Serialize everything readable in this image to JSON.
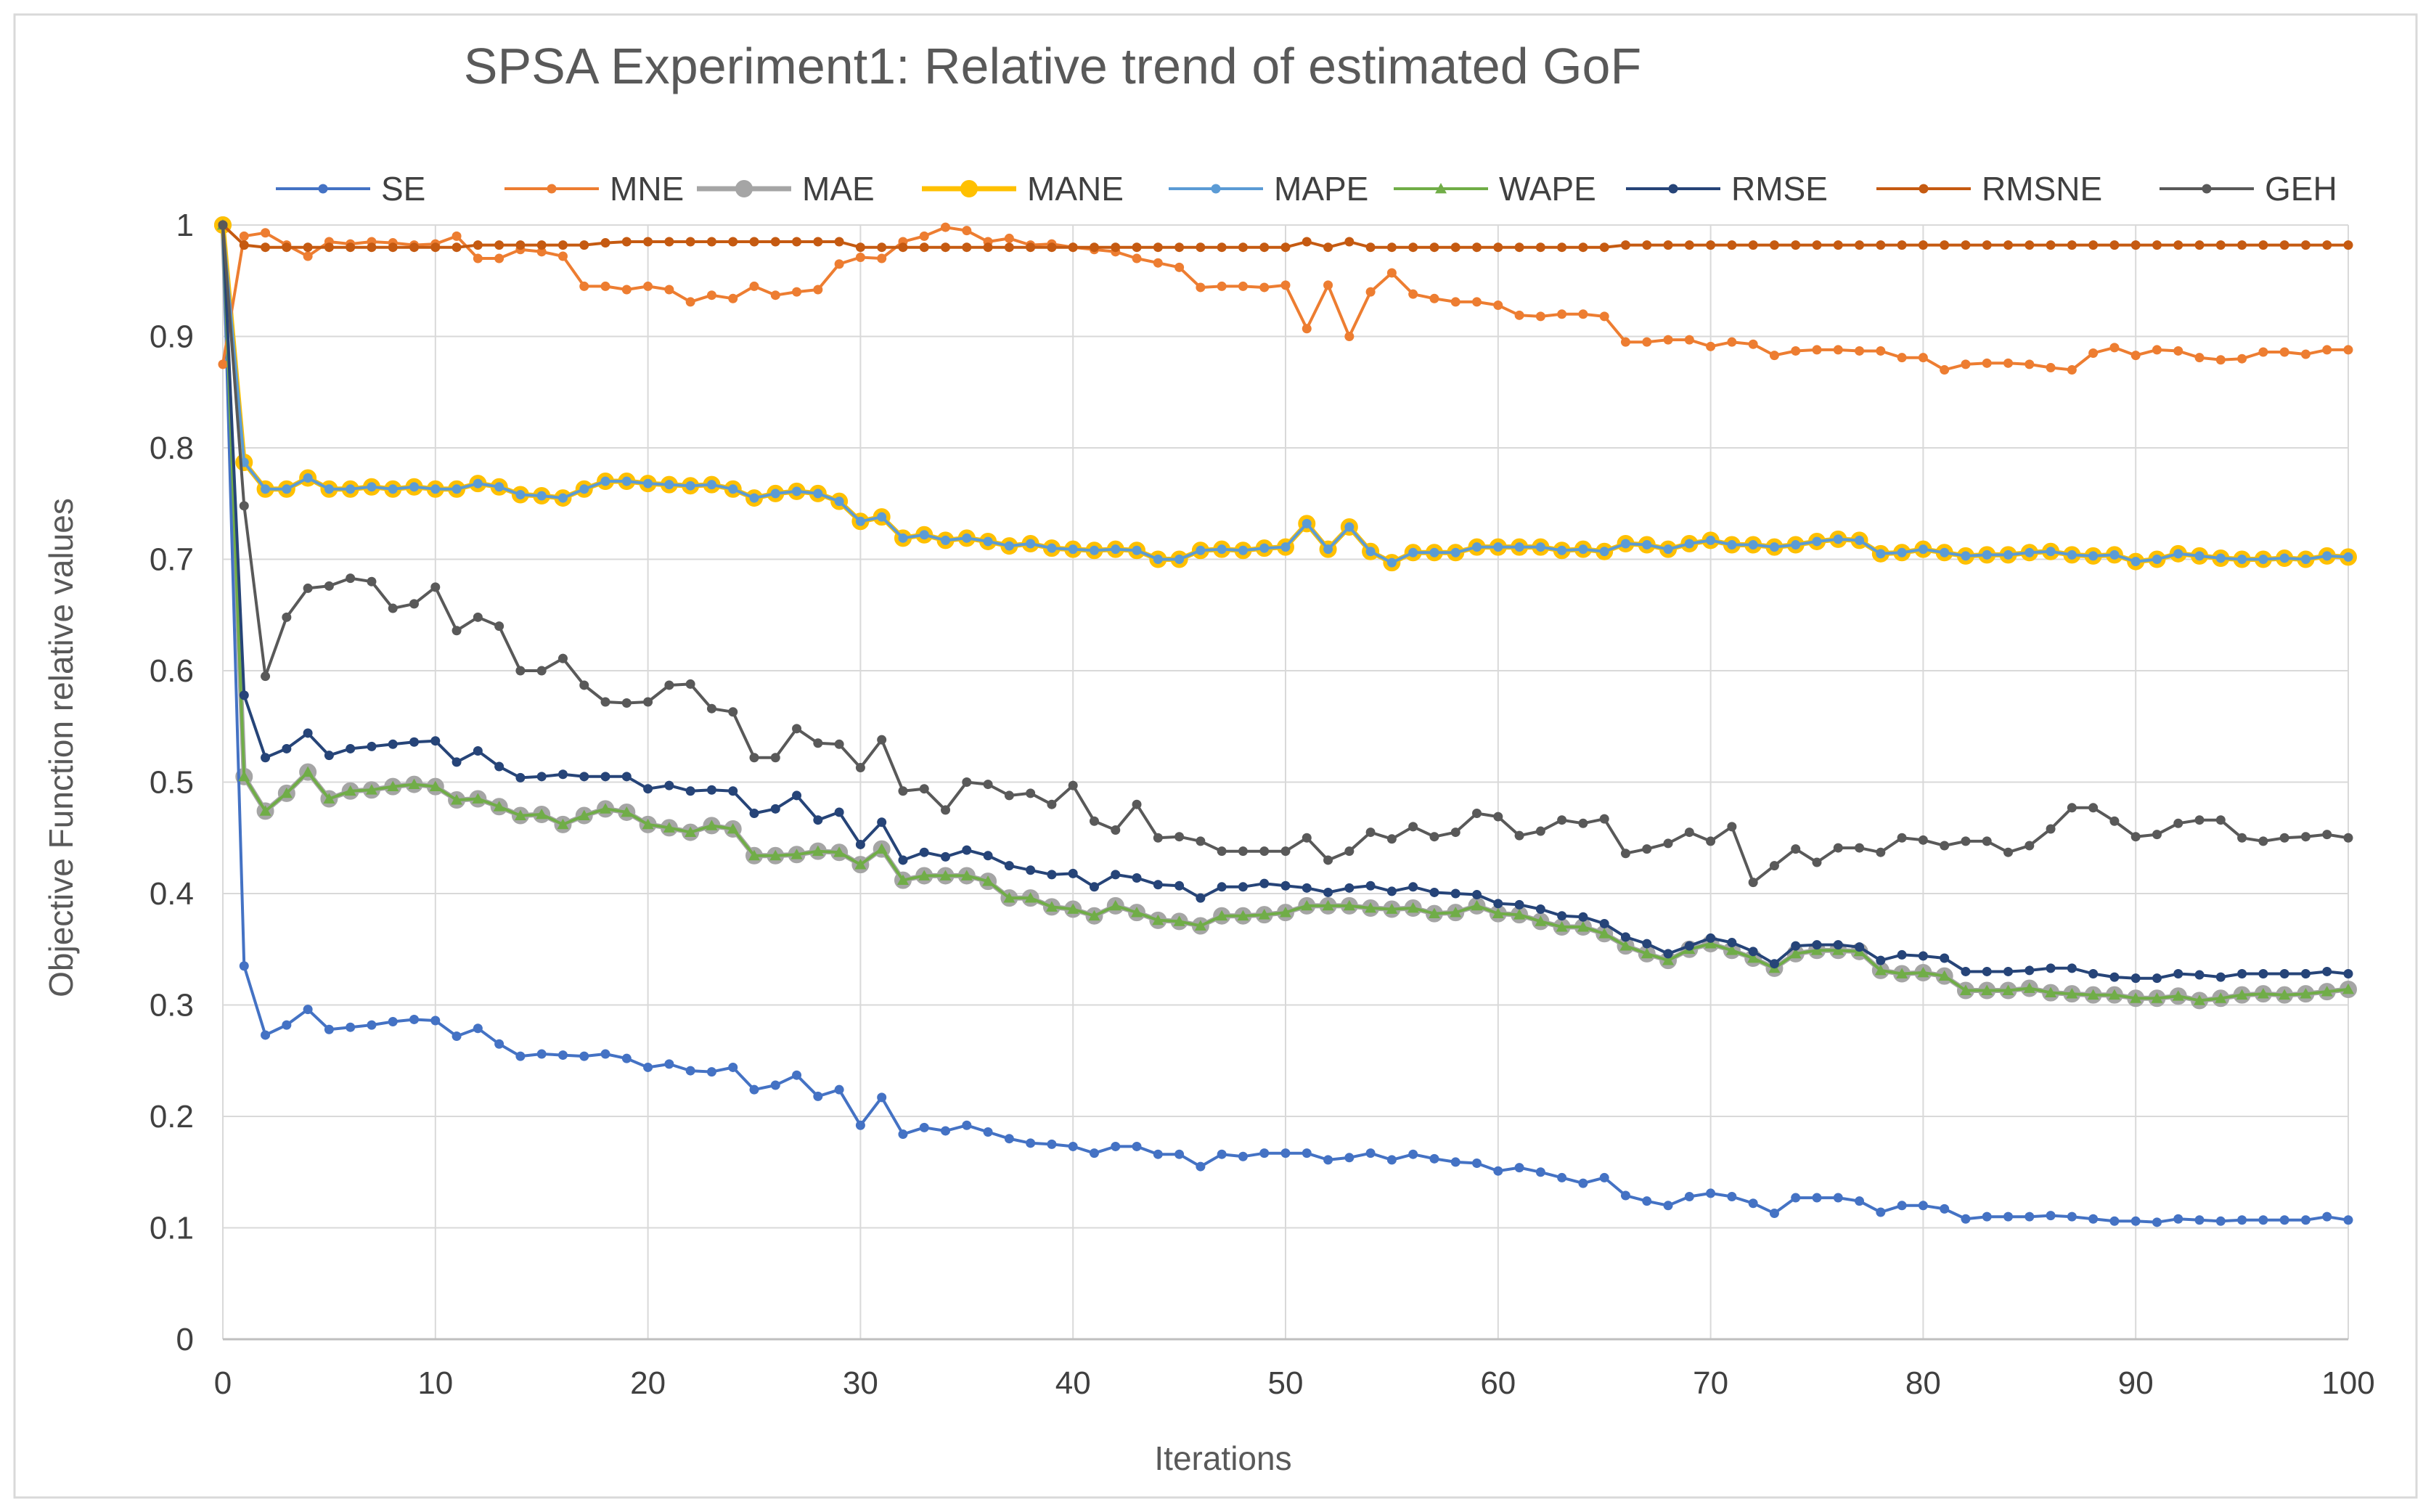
{
  "chart_data": {
    "type": "line",
    "title": "SPSA Experiment1: Relative trend of estimated GoF",
    "xlabel": "Iterations",
    "ylabel": "Objective Function relative values",
    "xlim": [
      0,
      100
    ],
    "ylim": [
      0,
      1
    ],
    "grid": true,
    "legend_position": "top",
    "x_ticks": [
      0,
      10,
      20,
      30,
      40,
      50,
      60,
      70,
      80,
      90,
      100
    ],
    "y_ticks": [
      0,
      0.1,
      0.2,
      0.3,
      0.4,
      0.5,
      0.6,
      0.7,
      0.8,
      0.9,
      1
    ],
    "x_tick_labels": [
      "0",
      "10",
      "20",
      "30",
      "40",
      "50",
      "60",
      "70",
      "80",
      "90",
      "100"
    ],
    "y_tick_labels": [
      "0",
      "0.1",
      "0.2",
      "0.3",
      "0.4",
      "0.5",
      "0.6",
      "0.7",
      "0.8",
      "0.9",
      "1"
    ],
    "series": [
      {
        "name": "SE",
        "color": "#4472C4",
        "marker": "dot",
        "values": [
          1,
          0.335,
          0.273,
          0.282,
          0.296,
          0.278,
          0.28,
          0.282,
          0.285,
          0.287,
          0.286,
          0.272,
          0.279,
          0.265,
          0.254,
          0.256,
          0.255,
          0.254,
          0.256,
          0.252,
          0.244,
          0.247,
          0.241,
          0.24,
          0.244,
          0.224,
          0.228,
          0.237,
          0.218,
          0.224,
          0.192,
          0.217,
          0.184,
          0.19,
          0.187,
          0.192,
          0.186,
          0.18,
          0.176,
          0.175,
          0.173,
          0.167,
          0.173,
          0.173,
          0.166,
          0.166,
          0.155,
          0.166,
          0.164,
          0.167,
          0.167,
          0.167,
          0.161,
          0.163,
          0.167,
          0.161,
          0.166,
          0.162,
          0.159,
          0.158,
          0.151,
          0.154,
          0.15,
          0.145,
          0.14,
          0.145,
          0.129,
          0.124,
          0.12,
          0.128,
          0.131,
          0.128,
          0.122,
          0.113,
          0.127,
          0.127,
          0.127,
          0.124,
          0.114,
          0.12,
          0.12,
          0.117,
          0.108,
          0.11,
          0.11,
          0.11,
          0.111,
          0.11,
          0.108,
          0.106,
          0.106,
          0.105,
          0.108,
          0.107,
          0.106,
          0.107,
          0.107,
          0.107,
          0.107,
          0.11,
          0.107
        ]
      },
      {
        "name": "MNE",
        "color": "#ED7D31",
        "marker": "dot",
        "values": [
          0.875,
          0.99,
          0.993,
          0.982,
          0.972,
          0.985,
          0.983,
          0.985,
          0.984,
          0.982,
          0.983,
          0.99,
          0.97,
          0.97,
          0.978,
          0.976,
          0.972,
          0.945,
          0.945,
          0.942,
          0.945,
          0.942,
          0.931,
          0.937,
          0.934,
          0.945,
          0.937,
          0.94,
          0.942,
          0.965,
          0.971,
          0.97,
          0.985,
          0.99,
          0.998,
          0.995,
          0.985,
          0.988,
          0.982,
          0.983,
          0.98,
          0.978,
          0.976,
          0.97,
          0.966,
          0.962,
          0.944,
          0.945,
          0.945,
          0.944,
          0.946,
          0.907,
          0.946,
          0.9,
          0.94,
          0.957,
          0.938,
          0.934,
          0.931,
          0.931,
          0.928,
          0.919,
          0.918,
          0.92,
          0.92,
          0.918,
          0.895,
          0.895,
          0.897,
          0.897,
          0.891,
          0.895,
          0.893,
          0.883,
          0.887,
          0.888,
          0.888,
          0.887,
          0.887,
          0.881,
          0.881,
          0.87,
          0.875,
          0.876,
          0.876,
          0.875,
          0.872,
          0.87,
          0.885,
          0.89,
          0.883,
          0.888,
          0.887,
          0.881,
          0.879,
          0.88,
          0.886,
          0.886,
          0.884,
          0.888,
          0.888
        ]
      },
      {
        "name": "MAE",
        "color": "#A5A5A5",
        "marker": "circle-large",
        "values": [
          1,
          0.505,
          0.474,
          0.49,
          0.509,
          0.485,
          0.492,
          0.493,
          0.496,
          0.498,
          0.496,
          0.484,
          0.485,
          0.478,
          0.47,
          0.471,
          0.462,
          0.47,
          0.476,
          0.473,
          0.462,
          0.459,
          0.455,
          0.461,
          0.458,
          0.434,
          0.434,
          0.435,
          0.438,
          0.437,
          0.426,
          0.44,
          0.412,
          0.416,
          0.416,
          0.416,
          0.411,
          0.396,
          0.396,
          0.388,
          0.386,
          0.38,
          0.389,
          0.383,
          0.376,
          0.375,
          0.371,
          0.38,
          0.38,
          0.381,
          0.383,
          0.389,
          0.389,
          0.389,
          0.387,
          0.386,
          0.387,
          0.382,
          0.383,
          0.389,
          0.382,
          0.381,
          0.375,
          0.37,
          0.37,
          0.364,
          0.353,
          0.346,
          0.34,
          0.35,
          0.355,
          0.349,
          0.342,
          0.333,
          0.346,
          0.349,
          0.349,
          0.348,
          0.331,
          0.328,
          0.329,
          0.326,
          0.313,
          0.313,
          0.313,
          0.315,
          0.311,
          0.31,
          0.309,
          0.309,
          0.306,
          0.306,
          0.308,
          0.304,
          0.306,
          0.309,
          0.31,
          0.309,
          0.31,
          0.312,
          0.314
        ]
      },
      {
        "name": "MANE",
        "color": "#FFC000",
        "marker": "circle-large",
        "values": [
          1,
          0.787,
          0.763,
          0.763,
          0.773,
          0.763,
          0.763,
          0.765,
          0.763,
          0.765,
          0.763,
          0.763,
          0.768,
          0.765,
          0.758,
          0.757,
          0.755,
          0.763,
          0.77,
          0.77,
          0.768,
          0.767,
          0.766,
          0.767,
          0.763,
          0.755,
          0.759,
          0.761,
          0.759,
          0.752,
          0.734,
          0.738,
          0.719,
          0.722,
          0.717,
          0.719,
          0.716,
          0.712,
          0.714,
          0.71,
          0.709,
          0.708,
          0.709,
          0.708,
          0.7,
          0.7,
          0.708,
          0.709,
          0.708,
          0.71,
          0.711,
          0.732,
          0.709,
          0.729,
          0.707,
          0.697,
          0.706,
          0.706,
          0.706,
          0.711,
          0.711,
          0.711,
          0.711,
          0.708,
          0.709,
          0.707,
          0.714,
          0.713,
          0.709,
          0.714,
          0.717,
          0.713,
          0.713,
          0.711,
          0.713,
          0.716,
          0.718,
          0.717,
          0.705,
          0.706,
          0.709,
          0.706,
          0.703,
          0.704,
          0.704,
          0.706,
          0.707,
          0.704,
          0.703,
          0.704,
          0.698,
          0.7,
          0.705,
          0.703,
          0.701,
          0.7,
          0.7,
          0.701,
          0.7,
          0.703,
          0.702
        ]
      },
      {
        "name": "MAPE",
        "color": "#5B9BD5",
        "marker": "dot",
        "values": [
          1,
          0.787,
          0.763,
          0.763,
          0.773,
          0.763,
          0.763,
          0.765,
          0.763,
          0.765,
          0.763,
          0.763,
          0.768,
          0.765,
          0.758,
          0.757,
          0.755,
          0.763,
          0.77,
          0.77,
          0.768,
          0.767,
          0.766,
          0.767,
          0.763,
          0.755,
          0.759,
          0.761,
          0.759,
          0.752,
          0.734,
          0.738,
          0.719,
          0.722,
          0.717,
          0.719,
          0.716,
          0.712,
          0.714,
          0.71,
          0.709,
          0.708,
          0.709,
          0.708,
          0.7,
          0.7,
          0.708,
          0.709,
          0.708,
          0.71,
          0.711,
          0.732,
          0.709,
          0.729,
          0.707,
          0.697,
          0.706,
          0.706,
          0.706,
          0.711,
          0.711,
          0.711,
          0.711,
          0.708,
          0.709,
          0.707,
          0.714,
          0.713,
          0.709,
          0.714,
          0.717,
          0.713,
          0.713,
          0.711,
          0.713,
          0.716,
          0.718,
          0.717,
          0.705,
          0.706,
          0.709,
          0.706,
          0.703,
          0.704,
          0.704,
          0.706,
          0.707,
          0.704,
          0.703,
          0.704,
          0.698,
          0.7,
          0.705,
          0.703,
          0.701,
          0.7,
          0.7,
          0.701,
          0.7,
          0.703,
          0.702
        ]
      },
      {
        "name": "WAPE",
        "color": "#70AD47",
        "marker": "triangle",
        "values": [
          1,
          0.505,
          0.474,
          0.49,
          0.509,
          0.485,
          0.492,
          0.493,
          0.496,
          0.498,
          0.496,
          0.484,
          0.485,
          0.478,
          0.47,
          0.471,
          0.462,
          0.47,
          0.476,
          0.473,
          0.462,
          0.459,
          0.455,
          0.461,
          0.458,
          0.434,
          0.434,
          0.435,
          0.438,
          0.437,
          0.426,
          0.44,
          0.412,
          0.416,
          0.416,
          0.416,
          0.411,
          0.396,
          0.396,
          0.388,
          0.386,
          0.38,
          0.389,
          0.383,
          0.376,
          0.375,
          0.371,
          0.38,
          0.38,
          0.381,
          0.383,
          0.389,
          0.389,
          0.389,
          0.387,
          0.386,
          0.387,
          0.382,
          0.383,
          0.389,
          0.382,
          0.381,
          0.375,
          0.37,
          0.37,
          0.364,
          0.353,
          0.346,
          0.34,
          0.35,
          0.355,
          0.349,
          0.342,
          0.333,
          0.346,
          0.349,
          0.349,
          0.348,
          0.331,
          0.328,
          0.329,
          0.326,
          0.313,
          0.313,
          0.313,
          0.315,
          0.311,
          0.31,
          0.309,
          0.309,
          0.306,
          0.306,
          0.308,
          0.304,
          0.306,
          0.309,
          0.31,
          0.309,
          0.31,
          0.312,
          0.314
        ]
      },
      {
        "name": "RMSE",
        "color": "#264478",
        "marker": "dot",
        "values": [
          1,
          0.578,
          0.522,
          0.53,
          0.544,
          0.524,
          0.53,
          0.532,
          0.534,
          0.536,
          0.537,
          0.518,
          0.528,
          0.514,
          0.504,
          0.505,
          0.507,
          0.505,
          0.505,
          0.505,
          0.494,
          0.497,
          0.492,
          0.493,
          0.492,
          0.472,
          0.476,
          0.488,
          0.466,
          0.473,
          0.444,
          0.464,
          0.43,
          0.437,
          0.433,
          0.439,
          0.434,
          0.425,
          0.421,
          0.417,
          0.418,
          0.406,
          0.417,
          0.414,
          0.408,
          0.407,
          0.396,
          0.406,
          0.406,
          0.409,
          0.407,
          0.405,
          0.401,
          0.405,
          0.407,
          0.402,
          0.406,
          0.401,
          0.4,
          0.399,
          0.391,
          0.39,
          0.386,
          0.38,
          0.379,
          0.373,
          0.361,
          0.355,
          0.346,
          0.353,
          0.36,
          0.356,
          0.348,
          0.337,
          0.353,
          0.354,
          0.354,
          0.352,
          0.34,
          0.345,
          0.344,
          0.342,
          0.33,
          0.33,
          0.33,
          0.331,
          0.333,
          0.333,
          0.328,
          0.325,
          0.324,
          0.324,
          0.328,
          0.327,
          0.325,
          0.328,
          0.328,
          0.328,
          0.328,
          0.33,
          0.328
        ]
      },
      {
        "name": "RMSNE",
        "color": "#C55A11",
        "marker": "dot",
        "values": [
          1,
          0.982,
          0.98,
          0.98,
          0.98,
          0.98,
          0.98,
          0.98,
          0.98,
          0.98,
          0.98,
          0.98,
          0.982,
          0.982,
          0.982,
          0.982,
          0.982,
          0.982,
          0.984,
          0.985,
          0.985,
          0.985,
          0.985,
          0.985,
          0.985,
          0.985,
          0.985,
          0.985,
          0.985,
          0.985,
          0.98,
          0.98,
          0.98,
          0.98,
          0.98,
          0.98,
          0.98,
          0.98,
          0.98,
          0.98,
          0.98,
          0.98,
          0.98,
          0.98,
          0.98,
          0.98,
          0.98,
          0.98,
          0.98,
          0.98,
          0.98,
          0.985,
          0.98,
          0.985,
          0.98,
          0.98,
          0.98,
          0.98,
          0.98,
          0.98,
          0.98,
          0.98,
          0.98,
          0.98,
          0.98,
          0.98,
          0.982,
          0.982,
          0.982,
          0.982,
          0.982,
          0.982,
          0.982,
          0.982,
          0.982,
          0.982,
          0.982,
          0.982,
          0.982,
          0.982,
          0.982,
          0.982,
          0.982,
          0.982,
          0.982,
          0.982,
          0.982,
          0.982,
          0.982,
          0.982,
          0.982,
          0.982,
          0.982,
          0.982,
          0.982,
          0.982,
          0.982,
          0.982,
          0.982,
          0.982,
          0.982
        ]
      },
      {
        "name": "GEH",
        "color": "#595959",
        "marker": "dot",
        "values": [
          1,
          0.748,
          0.595,
          0.648,
          0.674,
          0.676,
          0.683,
          0.68,
          0.656,
          0.66,
          0.675,
          0.636,
          0.648,
          0.64,
          0.6,
          0.6,
          0.611,
          0.587,
          0.572,
          0.571,
          0.572,
          0.587,
          0.588,
          0.566,
          0.563,
          0.522,
          0.522,
          0.548,
          0.535,
          0.534,
          0.513,
          0.538,
          0.492,
          0.494,
          0.475,
          0.5,
          0.498,
          0.488,
          0.49,
          0.48,
          0.497,
          0.465,
          0.457,
          0.48,
          0.45,
          0.451,
          0.447,
          0.438,
          0.438,
          0.438,
          0.438,
          0.45,
          0.43,
          0.438,
          0.455,
          0.449,
          0.46,
          0.451,
          0.455,
          0.472,
          0.469,
          0.452,
          0.456,
          0.466,
          0.463,
          0.467,
          0.436,
          0.44,
          0.445,
          0.455,
          0.447,
          0.46,
          0.41,
          0.425,
          0.44,
          0.428,
          0.441,
          0.441,
          0.437,
          0.45,
          0.448,
          0.443,
          0.447,
          0.447,
          0.437,
          0.443,
          0.458,
          0.477,
          0.477,
          0.465,
          0.451,
          0.453,
          0.463,
          0.466,
          0.466,
          0.45,
          0.447,
          0.45,
          0.451,
          0.453,
          0.45
        ]
      }
    ]
  }
}
